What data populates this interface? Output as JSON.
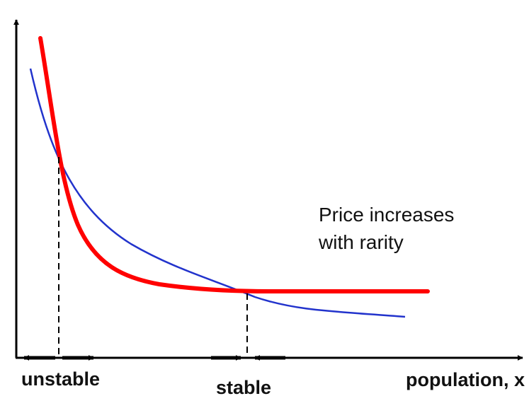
{
  "annotation": {
    "line1": "Price increases",
    "line2": "with rarity"
  },
  "labels": {
    "x_axis": "population, x",
    "unstable": "unstable",
    "stable": "stable"
  },
  "colors": {
    "red_curve": "#ff0000",
    "blue_curve": "#2233cc",
    "axes": "#000000"
  }
}
